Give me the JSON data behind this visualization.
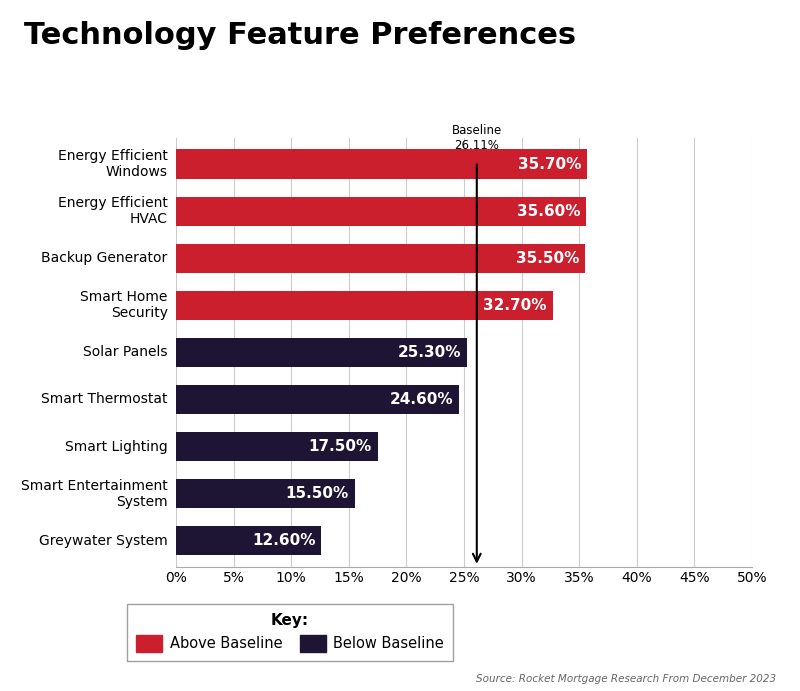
{
  "title": "Technology Feature Preferences",
  "categories": [
    "Energy Efficient\nWindows",
    "Energy Efficient\nHVAC",
    "Backup Generator",
    "Smart Home\nSecurity",
    "Solar Panels",
    "Smart Thermostat",
    "Smart Lighting",
    "Smart Entertainment\nSystem",
    "Greywater System"
  ],
  "values": [
    35.7,
    35.6,
    35.5,
    32.7,
    25.3,
    24.6,
    17.5,
    15.5,
    12.6
  ],
  "colors": [
    "#cc1f2e",
    "#cc1f2e",
    "#cc1f2e",
    "#cc1f2e",
    "#1e1535",
    "#1e1535",
    "#1e1535",
    "#1e1535",
    "#1e1535"
  ],
  "labels": [
    "35.70%",
    "35.60%",
    "35.50%",
    "32.70%",
    "25.30%",
    "24.60%",
    "17.50%",
    "15.50%",
    "12.60%"
  ],
  "baseline": 26.11,
  "baseline_label": "Baseline\n26.11%",
  "xlim": [
    0,
    50
  ],
  "xticks": [
    0,
    5,
    10,
    15,
    20,
    25,
    30,
    35,
    40,
    45,
    50
  ],
  "xtick_labels": [
    "0%",
    "5%",
    "10%",
    "15%",
    "20%",
    "25%",
    "30%",
    "35%",
    "40%",
    "45%",
    "50%"
  ],
  "background_color": "#ffffff",
  "title_fontsize": 22,
  "bar_label_fontsize": 11,
  "tick_fontsize": 10,
  "legend_label_above": "Above Baseline",
  "legend_label_below": "Below Baseline",
  "source_text": "Source: Rocket Mortgage Research From December 2023",
  "color_above": "#cc1f2e",
  "color_below": "#1e1535",
  "bar_height": 0.62
}
